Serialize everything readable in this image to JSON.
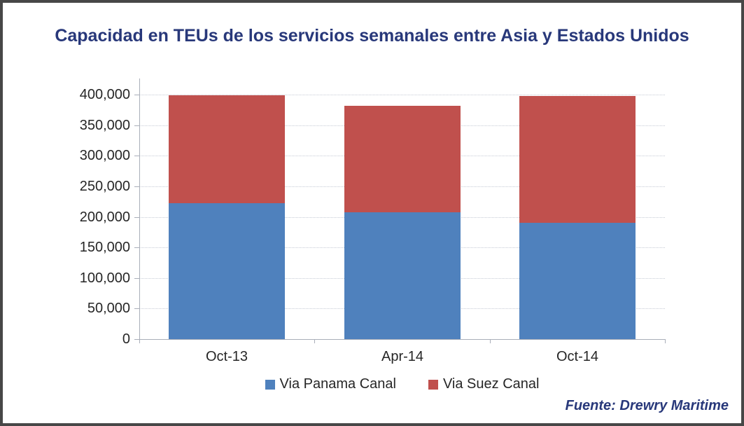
{
  "page": {
    "title": "Capacidad en TEUs de los servicios semanales entre Asia y Estados Unidos",
    "source": "Fuente: Drewry Maritime",
    "title_color": "#28387a",
    "border_color": "#474747",
    "background": "#ffffff"
  },
  "chart_data": {
    "type": "bar",
    "stacked": true,
    "title": "Capacidad en TEUs de los servicios semanales entre Asia y Estados Unidos",
    "categories": [
      "Oct-13",
      "Apr-14",
      "Oct-14"
    ],
    "series": [
      {
        "name": "Via Panama Canal",
        "color": "#4F81BD",
        "values": [
          222000,
          208000,
          190000
        ]
      },
      {
        "name": "Via Suez Canal",
        "color": "#C0504D",
        "values": [
          177000,
          174000,
          208000
        ]
      }
    ],
    "totals": [
      399000,
      382000,
      398000
    ],
    "xlabel": "",
    "ylabel": "",
    "ylim": [
      0,
      400000
    ],
    "ytick_step": 50000,
    "ytick_labels": [
      "0",
      "50,000",
      "100,000",
      "150,000",
      "200,000",
      "250,000",
      "300,000",
      "350,000",
      "400,000"
    ],
    "grid": "horizontal-dotted",
    "legend_position": "bottom",
    "source": "Fuente: Drewry Maritime"
  }
}
